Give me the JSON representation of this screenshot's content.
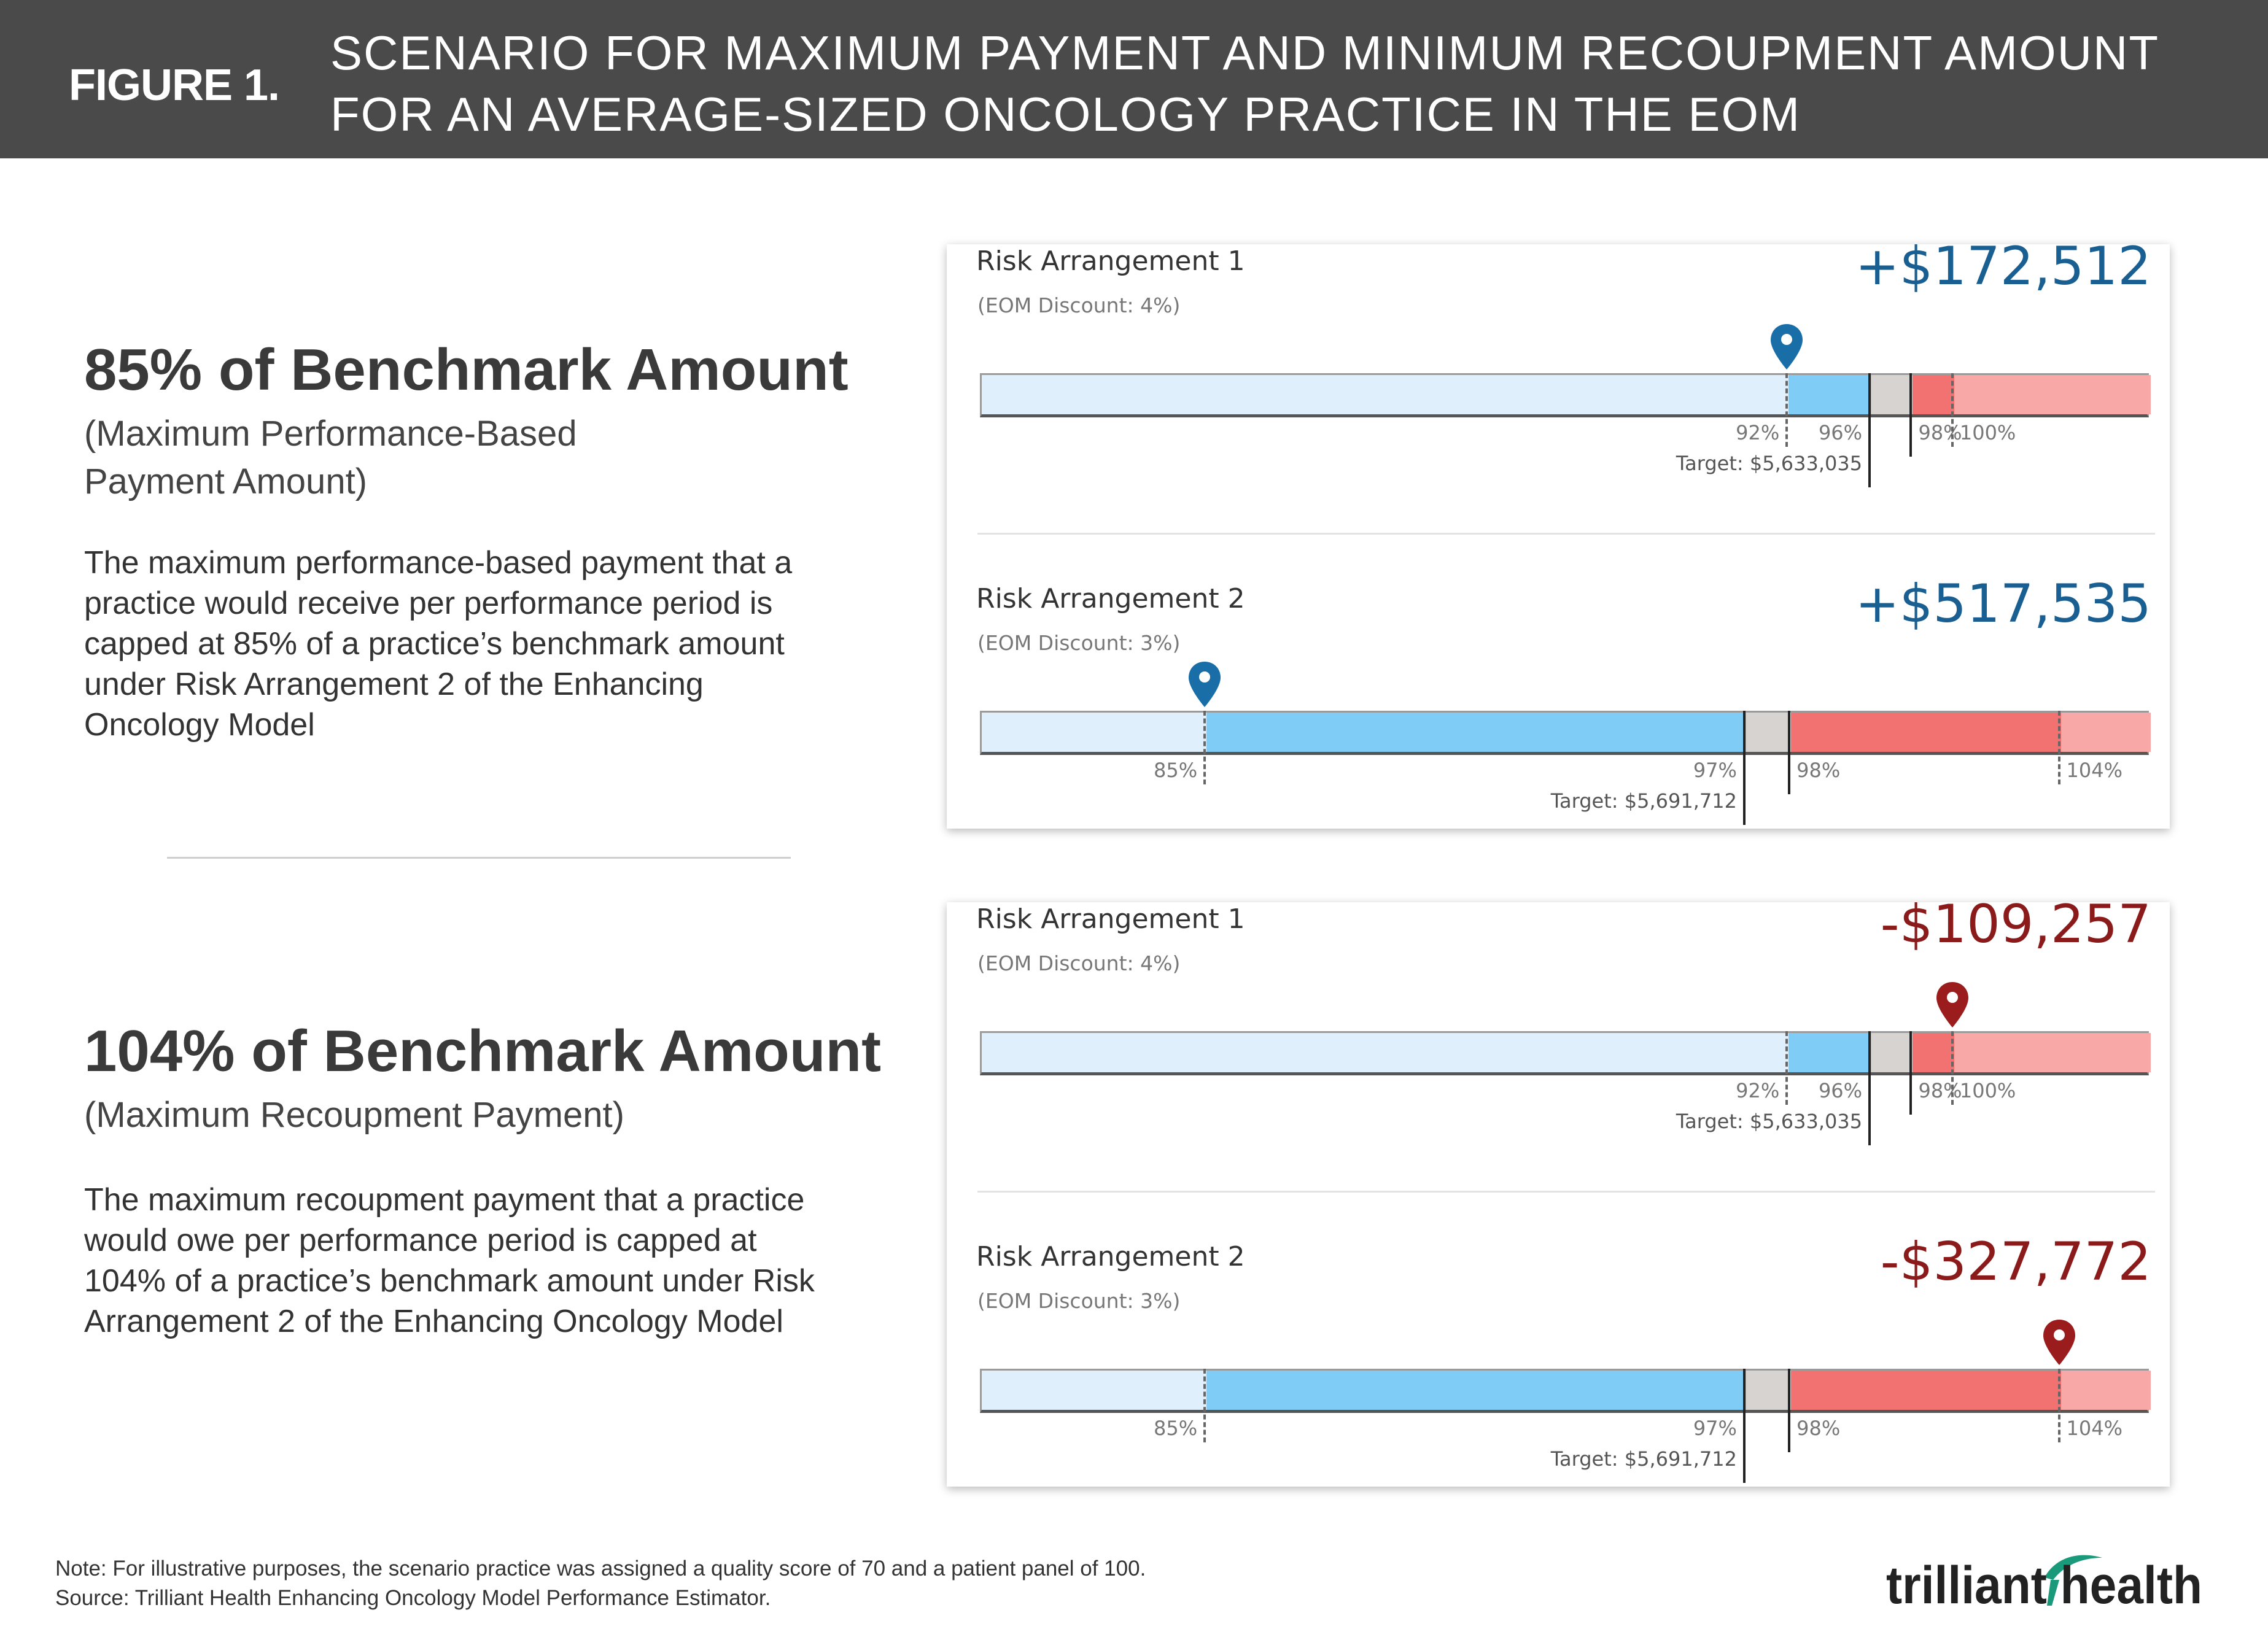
{
  "header": {
    "figure_label": "FIGURE 1.",
    "title_line1": "SCENARIO FOR MAXIMUM PAYMENT AND MINIMUM RECOUPMENT AMOUNT",
    "title_line2": "FOR AN AVERAGE-SIZED ONCOLOGY PRACTICE IN THE EOM"
  },
  "section1": {
    "heading": "85% of Benchmark Amount",
    "subheading_line1": "(Maximum Performance-Based",
    "subheading_line2": "Payment Amount)",
    "body_lines": [
      "The maximum performance-based payment that a",
      "practice would receive per performance period is",
      "capped at 85% of a practice’s benchmark amount",
      "under Risk Arrangement 2 of the Enhancing",
      "Oncology Model"
    ]
  },
  "section2": {
    "heading": "104% of Benchmark Amount",
    "subheading": "(Maximum Recoupment Payment)",
    "body_lines": [
      "The maximum recoupment payment that a practice",
      "would owe per performance period is capped at",
      "104% of a practice’s benchmark amount under Risk",
      "Arrangement 2 of the Enhancing Oncology Model"
    ]
  },
  "cards": [
    {
      "panels": [
        {
          "name": "Risk Arrangement 1",
          "discount": "(EOM Discount: 4%)",
          "amount": "+$172,512",
          "amount_sign": "positive",
          "scale_min": 0.53,
          "scale_max": 1.095,
          "marker_value": 0.92,
          "segments": [
            {
              "from": 0.53,
              "to": 0.92,
              "color": "#dff0fc"
            },
            {
              "from": 0.92,
              "to": 0.96,
              "color": "#7fcdf7"
            },
            {
              "from": 0.96,
              "to": 0.98,
              "color": "#d6d3d1"
            },
            {
              "from": 0.98,
              "to": 1.0,
              "color": "#f27272"
            },
            {
              "from": 1.0,
              "to": 1.095,
              "color": "#f9a8a8"
            }
          ],
          "ticks": [
            {
              "value": 0.92,
              "label": "92%",
              "style": "dashed",
              "side": "left"
            },
            {
              "value": 0.96,
              "label": "96%",
              "style": "solid",
              "side": "left"
            },
            {
              "value": 0.98,
              "label": "98%",
              "style": "solid",
              "side": "right"
            },
            {
              "value": 1.0,
              "label": "100%",
              "style": "dashed",
              "side": "right"
            }
          ],
          "target_value": 0.96,
          "target_label": "Target: $5,633,035",
          "pin_color": "#1a6ea8"
        },
        {
          "name": "Risk Arrangement 2",
          "discount": "(EOM Discount: 3%)",
          "amount": "+$517,535",
          "amount_sign": "positive",
          "scale_min": 0.8,
          "scale_max": 1.06,
          "marker_value": 0.85,
          "segments": [
            {
              "from": 0.8,
              "to": 0.85,
              "color": "#dff0fc"
            },
            {
              "from": 0.85,
              "to": 0.97,
              "color": "#7fcdf7"
            },
            {
              "from": 0.97,
              "to": 0.98,
              "color": "#d6d3d1"
            },
            {
              "from": 0.98,
              "to": 1.04,
              "color": "#f27272"
            },
            {
              "from": 1.04,
              "to": 1.06,
              "color": "#f9a8a8"
            }
          ],
          "ticks": [
            {
              "value": 0.85,
              "label": "85%",
              "style": "dashed",
              "side": "left"
            },
            {
              "value": 0.97,
              "label": "97%",
              "style": "solid",
              "side": "left"
            },
            {
              "value": 0.98,
              "label": "98%",
              "style": "solid",
              "side": "right"
            },
            {
              "value": 1.04,
              "label": "104%",
              "style": "dashed",
              "side": "right"
            }
          ],
          "target_value": 0.97,
          "target_label": "Target: $5,691,712",
          "pin_color": "#1a6ea8"
        }
      ]
    },
    {
      "panels": [
        {
          "name": "Risk Arrangement 1",
          "discount": "(EOM Discount: 4%)",
          "amount": "-$109,257",
          "amount_sign": "negative",
          "scale_min": 0.53,
          "scale_max": 1.095,
          "marker_value": 1.0,
          "segments": [
            {
              "from": 0.53,
              "to": 0.92,
              "color": "#dff0fc"
            },
            {
              "from": 0.92,
              "to": 0.96,
              "color": "#7fcdf7"
            },
            {
              "from": 0.96,
              "to": 0.98,
              "color": "#d6d3d1"
            },
            {
              "from": 0.98,
              "to": 1.0,
              "color": "#f27272"
            },
            {
              "from": 1.0,
              "to": 1.095,
              "color": "#f9a8a8"
            }
          ],
          "ticks": [
            {
              "value": 0.92,
              "label": "92%",
              "style": "dashed",
              "side": "left"
            },
            {
              "value": 0.96,
              "label": "96%",
              "style": "solid",
              "side": "left"
            },
            {
              "value": 0.98,
              "label": "98%",
              "style": "solid",
              "side": "right"
            },
            {
              "value": 1.0,
              "label": "100%",
              "style": "dashed",
              "side": "right"
            }
          ],
          "target_value": 0.96,
          "target_label": "Target: $5,633,035",
          "pin_color": "#9b1c1c"
        },
        {
          "name": "Risk Arrangement 2",
          "discount": "(EOM Discount: 3%)",
          "amount": "-$327,772",
          "amount_sign": "negative",
          "scale_min": 0.8,
          "scale_max": 1.06,
          "marker_value": 1.04,
          "segments": [
            {
              "from": 0.8,
              "to": 0.85,
              "color": "#dff0fc"
            },
            {
              "from": 0.85,
              "to": 0.97,
              "color": "#7fcdf7"
            },
            {
              "from": 0.97,
              "to": 0.98,
              "color": "#d6d3d1"
            },
            {
              "from": 0.98,
              "to": 1.04,
              "color": "#f27272"
            },
            {
              "from": 1.04,
              "to": 1.06,
              "color": "#f9a8a8"
            }
          ],
          "ticks": [
            {
              "value": 0.85,
              "label": "85%",
              "style": "dashed",
              "side": "left"
            },
            {
              "value": 0.97,
              "label": "97%",
              "style": "solid",
              "side": "left"
            },
            {
              "value": 0.98,
              "label": "98%",
              "style": "solid",
              "side": "right"
            },
            {
              "value": 1.04,
              "label": "104%",
              "style": "dashed",
              "side": "right"
            }
          ],
          "target_value": 0.97,
          "target_label": "Target: $5,691,712",
          "pin_color": "#9b1c1c"
        }
      ]
    }
  ],
  "footer": {
    "note": "Note: For illustrative purposes, the scenario practice was assigned a quality score of 70 and a patient panel of 100.",
    "source": "Source: Trilliant Health Enhancing Oncology Model Performance Estimator.",
    "logo_text": "trilliant health",
    "logo_color": "#1a9a7a"
  }
}
